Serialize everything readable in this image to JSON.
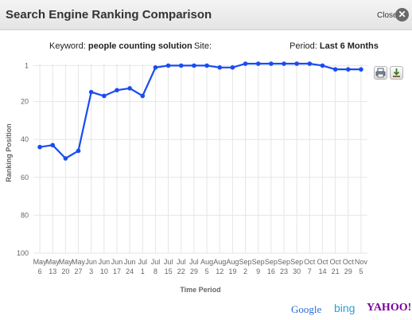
{
  "window": {
    "title": "Search Engine Ranking Comparison",
    "close_label": "Close",
    "close_icon": "✕"
  },
  "info": {
    "keyword_label": "Keyword:",
    "keyword_value": "people counting solution",
    "site_label": "Site:",
    "site_value": "",
    "period_label": "Period:",
    "period_value": "Last 6 Months"
  },
  "toolbar": {
    "print_icon": "printer-icon",
    "export_icon": "download-icon"
  },
  "engines": {
    "google": "Google",
    "bing": "bing",
    "yahoo": "YAHOO!"
  },
  "colors": {
    "line": "#1a4cf0",
    "grid": "#e6e6e6",
    "axis_text": "#666666"
  },
  "chart_data": {
    "type": "line",
    "xlabel": "Time Period",
    "ylabel": "Ranking Position",
    "y_inverted": true,
    "ylim": [
      1,
      100
    ],
    "yticks": [
      1,
      20,
      40,
      60,
      80,
      100
    ],
    "grid": true,
    "categories": [
      [
        "May",
        "6"
      ],
      [
        "May",
        "13"
      ],
      [
        "May",
        "20"
      ],
      [
        "May",
        "27"
      ],
      [
        "Jun",
        "3"
      ],
      [
        "Jun",
        "10"
      ],
      [
        "Jun",
        "17"
      ],
      [
        "Jun",
        "24"
      ],
      [
        "Jul",
        "1"
      ],
      [
        "Jul",
        "8"
      ],
      [
        "Jul",
        "15"
      ],
      [
        "Jul",
        "22"
      ],
      [
        "Jul",
        "29"
      ],
      [
        "Aug",
        "5"
      ],
      [
        "Aug",
        "12"
      ],
      [
        "Aug",
        "19"
      ],
      [
        "Sep",
        "2"
      ],
      [
        "Sep",
        "9"
      ],
      [
        "Sep",
        "16"
      ],
      [
        "Sep",
        "23"
      ],
      [
        "Sep",
        "30"
      ],
      [
        "Oct",
        "7"
      ],
      [
        "Oct",
        "14"
      ],
      [
        "Oct",
        "21"
      ],
      [
        "Oct",
        "29"
      ],
      [
        "Nov",
        "5"
      ]
    ],
    "values": [
      44,
      43,
      50,
      46,
      15,
      17,
      14,
      13,
      17,
      2,
      1,
      1,
      1,
      1,
      2,
      2,
      0,
      0,
      0,
      0,
      0,
      0,
      1,
      3,
      3,
      3
    ]
  }
}
